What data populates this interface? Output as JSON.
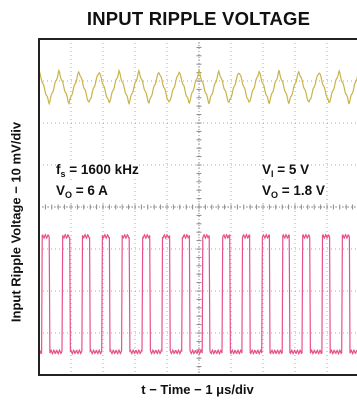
{
  "chart_data": {
    "type": "line",
    "title": "INPUT RIPPLE VOLTAGE",
    "xlabel": "t − Time − 1 μs/div",
    "ylabel": "Input Ripple Voltage − 10 mV/div",
    "grid": true,
    "x_divisions": 10,
    "y_divisions": 8,
    "annotations": {
      "fs": {
        "symbol": "f",
        "sub": "s",
        "text": " = 1600 kHz"
      },
      "vo_current": {
        "symbol": "V",
        "sub": "O",
        "text": " = 6 A"
      },
      "vi": {
        "symbol": "V",
        "sub": "I",
        "text": " = 5 V"
      },
      "vo_voltage": {
        "symbol": "V",
        "sub": "O",
        "text": " = 1.8 V"
      }
    },
    "series": [
      {
        "color": "#c8b44a",
        "waveform": "triangle",
        "period_div": 0.625,
        "center_div": 6.85,
        "amplitude_div": 0.38
      },
      {
        "color": "#e8508a",
        "waveform": "square",
        "period_div": 0.625,
        "high_div": 3.3,
        "low_div": 0.55,
        "duty": 0.38
      }
    ]
  }
}
